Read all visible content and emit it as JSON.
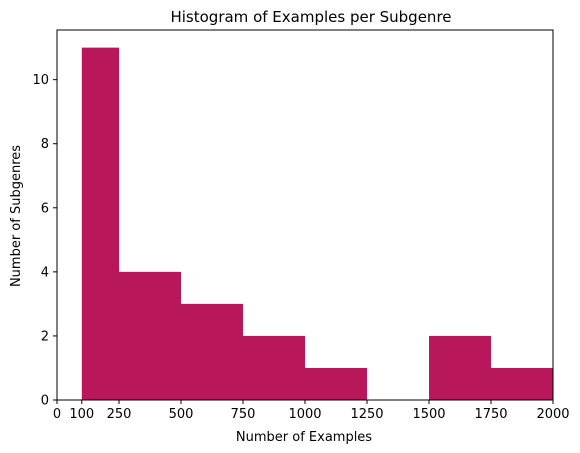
{
  "chart_data": {
    "type": "bar",
    "title": "Histogram of Examples per Subgenre",
    "xlabel": "Number of Examples",
    "ylabel": "Number of Subgenres",
    "bar_color": "#b8185a",
    "xlim": [
      0,
      2000
    ],
    "ylim": [
      0,
      11.55
    ],
    "x_ticks": [
      0,
      100,
      250,
      500,
      750,
      1000,
      1250,
      1500,
      1750,
      2000
    ],
    "y_ticks": [
      0,
      2,
      4,
      6,
      8,
      10
    ],
    "grid": false,
    "bins": [
      {
        "start": 100,
        "end": 250,
        "count": 11
      },
      {
        "start": 250,
        "end": 500,
        "count": 4
      },
      {
        "start": 500,
        "end": 750,
        "count": 3
      },
      {
        "start": 750,
        "end": 1000,
        "count": 2
      },
      {
        "start": 1000,
        "end": 1250,
        "count": 1
      },
      {
        "start": 1250,
        "end": 1500,
        "count": 0
      },
      {
        "start": 1500,
        "end": 1750,
        "count": 2
      },
      {
        "start": 1750,
        "end": 2000,
        "count": 1
      }
    ]
  }
}
